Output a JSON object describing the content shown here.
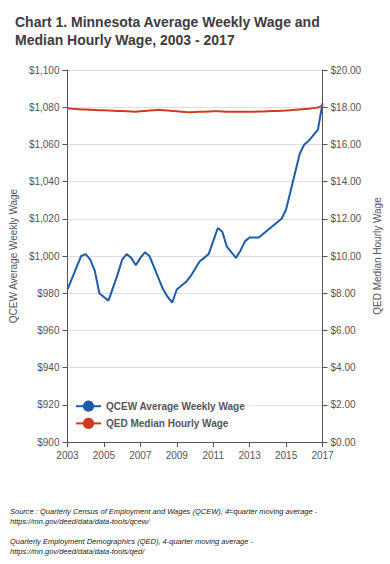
{
  "chart_data": {
    "type": "line",
    "title": "Chart 1. Minnesota Average Weekly Wage and\nMedian Hourly Wage, 2003 - 2017",
    "ylabel": "QCEW Average Weekly Wage",
    "y2label": "QED Median Hourly Wage",
    "annotations": [
      "Source : Quarterly Census of Employment and Wages (QCEW), 4=quarter moving average -\nhttps://mn.gov/deed/data/data-tools/qcew/\n\nQuarterly Employment Demographics (QED), 4-quarter moving average -\nhttps://mn.gov/deed/data/data-tools/qed/"
    ],
    "xlim": [
      2003,
      2017
    ],
    "xticks": [
      2003,
      2005,
      2007,
      2009,
      2011,
      2013,
      2015,
      2017
    ],
    "ylim": [
      900,
      1100
    ],
    "yticks": [
      {
        "value": 900,
        "label": "$900"
      },
      {
        "value": 920,
        "label": "$920"
      },
      {
        "value": 940,
        "label": "$940"
      },
      {
        "value": 960,
        "label": "$960"
      },
      {
        "value": 980,
        "label": "$980"
      },
      {
        "value": 1000,
        "label": "$1,000"
      },
      {
        "value": 1020,
        "label": "$1,020"
      },
      {
        "value": 1040,
        "label": "$1,040"
      },
      {
        "value": 1060,
        "label": "$1,060"
      },
      {
        "value": 1080,
        "label": "$1,080"
      },
      {
        "value": 1100,
        "label": "$1,100"
      }
    ],
    "y2lim": [
      0,
      20
    ],
    "y2ticks": [
      {
        "value": 0,
        "label": "$0.00"
      },
      {
        "value": 2,
        "label": "$2.00"
      },
      {
        "value": 4,
        "label": "$4.00"
      },
      {
        "value": 6,
        "label": "$6.00"
      },
      {
        "value": 8,
        "label": "$8.00"
      },
      {
        "value": 10,
        "label": "$10.00"
      },
      {
        "value": 12,
        "label": "$12.00"
      },
      {
        "value": 14,
        "label": "$14.00"
      },
      {
        "value": 16,
        "label": "$16.00"
      },
      {
        "value": 18,
        "label": "$18.00"
      },
      {
        "value": 20,
        "label": "$20.00"
      }
    ],
    "grid": true,
    "legend": "lower left",
    "x": [
      2003.0,
      2003.25,
      2003.5,
      2003.75,
      2004.0,
      2004.25,
      2004.5,
      2004.75,
      2005.0,
      2005.25,
      2005.5,
      2005.75,
      2006.0,
      2006.25,
      2006.5,
      2006.75,
      2007.0,
      2007.25,
      2007.5,
      2007.75,
      2008.0,
      2008.25,
      2008.5,
      2008.75,
      2009.0,
      2009.25,
      2009.5,
      2009.75,
      2010.0,
      2010.25,
      2010.5,
      2010.75,
      2011.0,
      2011.25,
      2011.5,
      2011.75,
      2012.0,
      2012.25,
      2012.5,
      2012.75,
      2013.0,
      2013.25,
      2013.5,
      2013.75,
      2014.0,
      2014.25,
      2014.5,
      2014.75,
      2015.0,
      2015.25,
      2015.5,
      2015.75,
      2016.0,
      2016.25,
      2016.5,
      2016.75,
      2017.0
    ],
    "series": [
      {
        "name": "QCEW Average Weekly Wage",
        "color": "#1f5ca8",
        "values": [
          982,
          988,
          994,
          1000,
          1001,
          998,
          992,
          980,
          978,
          976,
          983,
          990,
          998,
          1001,
          999,
          995,
          999,
          1002,
          1000,
          994,
          988,
          982,
          978,
          975,
          982,
          984,
          986,
          989,
          993,
          997,
          999,
          1001,
          1008,
          1015,
          1013,
          1005,
          1002,
          999,
          1003,
          1008,
          1010,
          1010,
          1010,
          1012,
          1014,
          1016,
          1018,
          1020,
          1025,
          1035,
          1045,
          1055,
          1060,
          1062,
          1065,
          1068,
          1082
        ]
      },
      {
        "name": "QED Median Hourly Wage",
        "color": "#d03b1f",
        "axis": "y2",
        "values": [
          17.95,
          17.92,
          17.9,
          17.88,
          17.87,
          17.86,
          17.85,
          17.84,
          17.83,
          17.82,
          17.81,
          17.8,
          17.79,
          17.78,
          17.77,
          17.76,
          17.78,
          17.8,
          17.82,
          17.84,
          17.86,
          17.84,
          17.82,
          17.8,
          17.78,
          17.76,
          17.74,
          17.73,
          17.74,
          17.75,
          17.76,
          17.77,
          17.78,
          17.78,
          17.77,
          17.76,
          17.75,
          17.75,
          17.75,
          17.76,
          17.76,
          17.76,
          17.77,
          17.77,
          17.78,
          17.79,
          17.8,
          17.81,
          17.82,
          17.84,
          17.86,
          17.88,
          17.9,
          17.92,
          17.95,
          17.98,
          18.1
        ]
      }
    ]
  }
}
